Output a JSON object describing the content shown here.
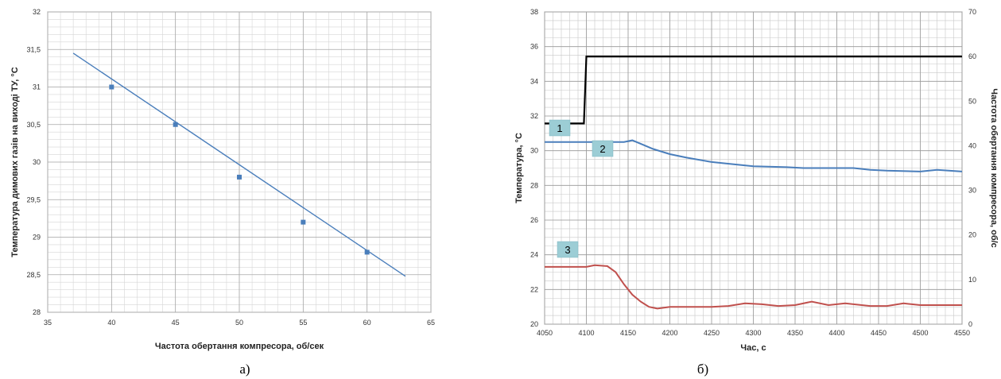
{
  "chart_data": [
    {
      "type": "scatter",
      "caption": "а)",
      "xlabel": "Частота обертання компресора, об/сек",
      "ylabel": "Температура димових газів на виході ТУ, °С",
      "xlim": [
        35,
        65
      ],
      "ylim": [
        28,
        32
      ],
      "xticks": [
        35,
        40,
        45,
        50,
        55,
        60,
        65
      ],
      "yticks": [
        28,
        28.5,
        29,
        29.5,
        30,
        30.5,
        31,
        31.5,
        32
      ],
      "grid": true,
      "series": [
        {
          "points": [
            [
              40,
              31.0
            ],
            [
              45,
              30.5
            ],
            [
              50,
              29.8
            ],
            [
              55,
              29.2
            ],
            [
              60,
              28.8
            ]
          ]
        }
      ],
      "trendline": [
        [
          37,
          31.45
        ],
        [
          63,
          28.48
        ]
      ],
      "colors": {
        "marker": "#4a7ebb",
        "line": "#4a7ebb"
      }
    },
    {
      "type": "line",
      "caption": "б)",
      "xlabel": "Час, с",
      "ylabel": "Температура, °С",
      "y2label": "Частота обертання компресора, об/с",
      "xlim": [
        4050,
        4550
      ],
      "ylim": [
        20,
        38
      ],
      "y2lim": [
        0,
        70
      ],
      "xticks": [
        4050,
        4100,
        4150,
        4200,
        4250,
        4300,
        4350,
        4400,
        4450,
        4500,
        4550
      ],
      "yticks": [
        20,
        22,
        24,
        26,
        28,
        30,
        32,
        34,
        36,
        38
      ],
      "y2ticks": [
        0,
        10,
        20,
        30,
        40,
        50,
        60,
        70
      ],
      "grid": true,
      "series": [
        {
          "label": "1",
          "color": "#000000",
          "axis": "y2",
          "points": [
            [
              4050,
              45
            ],
            [
              4097,
              45
            ],
            [
              4100,
              60
            ],
            [
              4550,
              60
            ]
          ]
        },
        {
          "label": "2",
          "color": "#4a7ebb",
          "axis": "y",
          "points": [
            [
              4050,
              30.5
            ],
            [
              4145,
              30.5
            ],
            [
              4155,
              30.6
            ],
            [
              4165,
              30.4
            ],
            [
              4180,
              30.1
            ],
            [
              4200,
              29.8
            ],
            [
              4220,
              29.6
            ],
            [
              4250,
              29.35
            ],
            [
              4280,
              29.2
            ],
            [
              4300,
              29.1
            ],
            [
              4340,
              29.05
            ],
            [
              4360,
              29.0
            ],
            [
              4420,
              29.0
            ],
            [
              4440,
              28.9
            ],
            [
              4460,
              28.85
            ],
            [
              4500,
              28.8
            ],
            [
              4520,
              28.9
            ],
            [
              4550,
              28.8
            ]
          ]
        },
        {
          "label": "3",
          "color": "#c0504d",
          "axis": "y",
          "points": [
            [
              4050,
              23.3
            ],
            [
              4100,
              23.3
            ],
            [
              4110,
              23.4
            ],
            [
              4125,
              23.35
            ],
            [
              4135,
              23.0
            ],
            [
              4145,
              22.3
            ],
            [
              4155,
              21.7
            ],
            [
              4165,
              21.3
            ],
            [
              4175,
              21.0
            ],
            [
              4185,
              20.9
            ],
            [
              4200,
              21.0
            ],
            [
              4250,
              21.0
            ],
            [
              4270,
              21.05
            ],
            [
              4290,
              21.2
            ],
            [
              4310,
              21.15
            ],
            [
              4330,
              21.05
            ],
            [
              4350,
              21.1
            ],
            [
              4370,
              21.3
            ],
            [
              4390,
              21.1
            ],
            [
              4410,
              21.2
            ],
            [
              4440,
              21.05
            ],
            [
              4460,
              21.05
            ],
            [
              4480,
              21.2
            ],
            [
              4500,
              21.1
            ],
            [
              4550,
              21.1
            ]
          ]
        }
      ]
    }
  ]
}
